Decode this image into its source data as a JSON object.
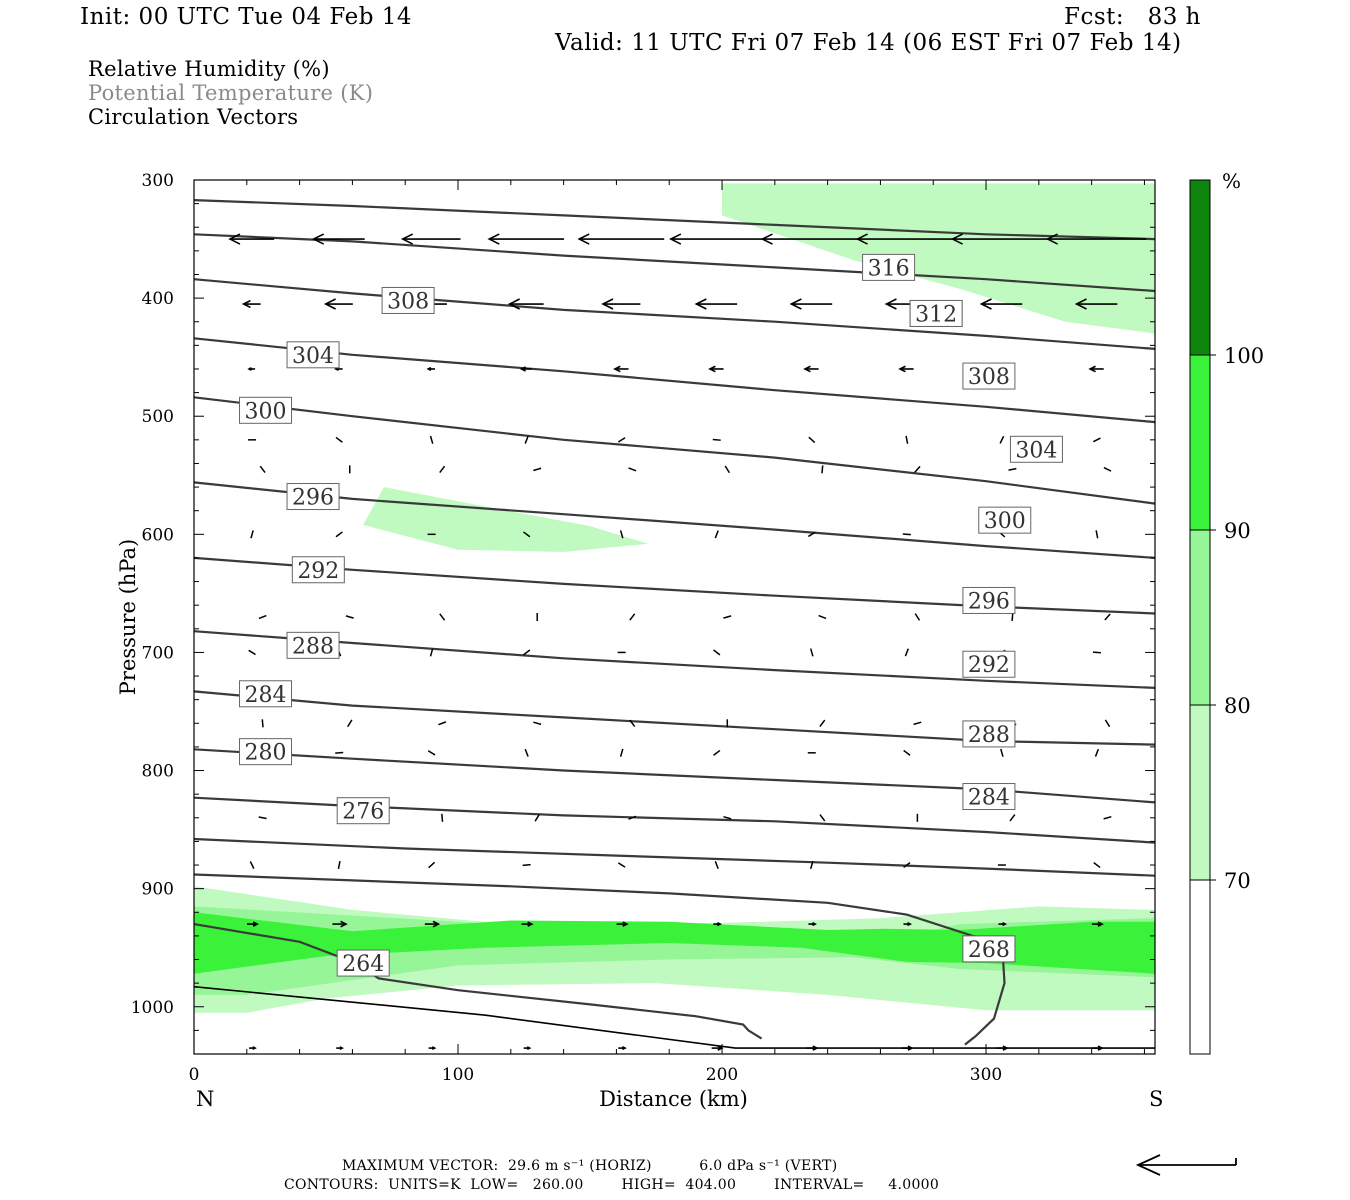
{
  "header": {
    "init": "Init: 00 UTC Tue 04 Feb 14",
    "fcst": "Fcst:   83 h",
    "valid": "Valid: 11 UTC Fri 07 Feb 14 (06 EST Fri 07 Feb 14)"
  },
  "fields": [
    "Relative Humidity (%)",
    "Potential Temperature (K)",
    "Circulation Vectors"
  ],
  "colors": {
    "rh70": "#c1fac1",
    "rh80": "#96f596",
    "rh90": "#39f239",
    "rh100": "#0e860e",
    "contour": "#3a3a3a",
    "field_gray": "#8a8a8a"
  },
  "chart_data": {
    "type": "cross-section",
    "xlabel": "Distance (km)",
    "ylabel": "Pressure (hPa)",
    "xlim": [
      0,
      364
    ],
    "ylim": [
      300,
      1040
    ],
    "xticks": [
      0,
      100,
      200,
      300
    ],
    "yticks": [
      300,
      400,
      500,
      600,
      700,
      800,
      900,
      1000
    ],
    "endpoint_left": "N",
    "endpoint_right": "S",
    "theta_contours": [
      {
        "label": "264",
        "points": [
          [
            0,
            930
          ],
          [
            40,
            945
          ],
          [
            60,
            962
          ],
          [
            70,
            976
          ],
          [
            100,
            986
          ],
          [
            150,
            998
          ],
          [
            190,
            1008
          ],
          [
            208,
            1015
          ],
          [
            210,
            1020
          ],
          [
            215,
            1027
          ]
        ],
        "label_at": [
          55,
          963
        ]
      },
      {
        "label": "268",
        "points": [
          [
            0,
            888
          ],
          [
            60,
            893
          ],
          [
            120,
            898
          ],
          [
            180,
            904
          ],
          [
            240,
            912
          ],
          [
            270,
            922
          ],
          [
            295,
            940
          ],
          [
            306,
            944
          ],
          [
            307,
            980
          ],
          [
            303,
            1010
          ],
          [
            296,
            1025
          ],
          [
            292,
            1032
          ]
        ],
        "label_at": [
          292,
          951
        ]
      },
      {
        "label": "",
        "points": [
          [
            0,
            858
          ],
          [
            80,
            866
          ],
          [
            160,
            872
          ],
          [
            240,
            878
          ],
          [
            300,
            883
          ],
          [
            364,
            889
          ]
        ],
        "label_at": null
      },
      {
        "label": "276",
        "points": [
          [
            0,
            823
          ],
          [
            60,
            830
          ],
          [
            140,
            838
          ],
          [
            220,
            843
          ],
          [
            300,
            852
          ],
          [
            364,
            861
          ]
        ],
        "label_at": [
          55,
          834
        ]
      },
      {
        "label": "280",
        "points": [
          [
            0,
            782
          ],
          [
            60,
            790
          ],
          [
            140,
            800
          ],
          [
            220,
            808
          ],
          [
            300,
            816
          ],
          [
            364,
            827
          ]
        ],
        "label_at": [
          18,
          784
        ]
      },
      {
        "label": "284",
        "points": [
          [
            0,
            733
          ],
          [
            60,
            745
          ],
          [
            140,
            755
          ],
          [
            220,
            765
          ],
          [
            300,
            775
          ],
          [
            364,
            778
          ]
        ],
        "label_at": [
          18,
          735
        ]
      },
      {
        "label": "288",
        "points": [
          [
            0,
            682
          ],
          [
            60,
            692
          ],
          [
            140,
            705
          ],
          [
            220,
            715
          ],
          [
            300,
            724
          ],
          [
            364,
            730
          ]
        ],
        "label_at": [
          36,
          694
        ]
      },
      {
        "label": "292",
        "points": [
          [
            0,
            620
          ],
          [
            60,
            630
          ],
          [
            140,
            642
          ],
          [
            220,
            652
          ],
          [
            300,
            661
          ],
          [
            364,
            667
          ]
        ],
        "label_at": [
          38,
          630
        ]
      },
      {
        "label": "296",
        "points": [
          [
            0,
            556
          ],
          [
            60,
            570
          ],
          [
            140,
            583
          ],
          [
            220,
            596
          ],
          [
            300,
            610
          ],
          [
            364,
            620
          ]
        ],
        "label_at": [
          36,
          568
        ]
      },
      {
        "label": "300",
        "points": [
          [
            0,
            484
          ],
          [
            60,
            500
          ],
          [
            140,
            520
          ],
          [
            220,
            535
          ],
          [
            300,
            555
          ],
          [
            364,
            574
          ]
        ],
        "label_at": [
          18,
          495
        ]
      },
      {
        "label": "304",
        "points": [
          [
            0,
            434
          ],
          [
            60,
            448
          ],
          [
            140,
            462
          ],
          [
            220,
            478
          ],
          [
            300,
            492
          ],
          [
            364,
            505
          ]
        ],
        "label_at": [
          36,
          448
        ]
      },
      {
        "label": "308",
        "points": [
          [
            0,
            384
          ],
          [
            60,
            396
          ],
          [
            140,
            410
          ],
          [
            220,
            420
          ],
          [
            300,
            432
          ],
          [
            364,
            443
          ]
        ],
        "label_at": [
          72,
          402
        ]
      },
      {
        "label": "312",
        "points": [
          [
            0,
            346
          ],
          [
            60,
            352
          ],
          [
            140,
            364
          ],
          [
            220,
            374
          ],
          [
            300,
            384
          ],
          [
            364,
            394
          ]
        ],
        "label_at": [
          272,
          413
        ]
      },
      {
        "label": "316",
        "points": [
          [
            0,
            317
          ],
          [
            60,
            322
          ],
          [
            140,
            330
          ],
          [
            220,
            338
          ],
          [
            300,
            346
          ],
          [
            364,
            350
          ]
        ],
        "label_at": [
          254,
          374
        ]
      }
    ],
    "theta_extra_labels": [
      {
        "label": "312",
        "at": [
          272,
          413
        ]
      },
      {
        "label": "308",
        "at": [
          292,
          466
        ]
      },
      {
        "label": "304",
        "at": [
          310,
          528
        ]
      },
      {
        "label": "300",
        "at": [
          298,
          588
        ]
      },
      {
        "label": "296",
        "at": [
          292,
          656
        ]
      },
      {
        "label": "292",
        "at": [
          292,
          710
        ]
      },
      {
        "label": "288",
        "at": [
          292,
          769
        ]
      },
      {
        "label": "284",
        "at": [
          292,
          822
        ]
      },
      {
        "label": "268",
        "at": [
          292,
          951
        ]
      }
    ],
    "rh_shaded": [
      {
        "level": "70-80",
        "polygon": [
          [
            200,
            303
          ],
          [
            364,
            303
          ],
          [
            364,
            430
          ],
          [
            330,
            420
          ],
          [
            290,
            392
          ],
          [
            250,
            368
          ],
          [
            200,
            330
          ]
        ]
      },
      {
        "level": "70-80",
        "polygon": [
          [
            64,
            592
          ],
          [
            72,
            560
          ],
          [
            100,
            572
          ],
          [
            150,
            593
          ],
          [
            172,
            608
          ],
          [
            140,
            615
          ],
          [
            100,
            613
          ]
        ]
      },
      {
        "level": "70-80",
        "polygon": [
          [
            0,
            898
          ],
          [
            60,
            918
          ],
          [
            120,
            930
          ],
          [
            200,
            929
          ],
          [
            260,
            925
          ],
          [
            320,
            915
          ],
          [
            364,
            918
          ],
          [
            364,
            1003
          ],
          [
            300,
            1003
          ],
          [
            240,
            990
          ],
          [
            175,
            980
          ],
          [
            100,
            982
          ],
          [
            50,
            993
          ],
          [
            20,
            1005
          ],
          [
            0,
            1005
          ]
        ]
      },
      {
        "level": "80-90",
        "polygon": [
          [
            0,
            915
          ],
          [
            100,
            928
          ],
          [
            200,
            940
          ],
          [
            260,
            945
          ],
          [
            290,
            930
          ],
          [
            364,
            925
          ],
          [
            364,
            975
          ],
          [
            290,
            968
          ],
          [
            250,
            958
          ],
          [
            180,
            960
          ],
          [
            100,
            965
          ],
          [
            20,
            990
          ],
          [
            0,
            990
          ]
        ]
      },
      {
        "level": "90-100",
        "polygon": [
          [
            0,
            920
          ],
          [
            60,
            936
          ],
          [
            120,
            927
          ],
          [
            180,
            928
          ],
          [
            240,
            935
          ],
          [
            262,
            934
          ],
          [
            290,
            935
          ],
          [
            340,
            928
          ],
          [
            364,
            928
          ],
          [
            364,
            972
          ],
          [
            300,
            963
          ],
          [
            270,
            962
          ],
          [
            230,
            950
          ],
          [
            180,
            946
          ],
          [
            110,
            950
          ],
          [
            50,
            957
          ],
          [
            0,
            972
          ]
        ]
      }
    ],
    "circulation_vectors_u_ms": [
      {
        "p": 350,
        "u": [
          -13,
          -15,
          -17,
          -22,
          -25,
          -27,
          -29,
          -29,
          -29,
          -29
        ]
      },
      {
        "p": 405,
        "u": [
          -5,
          -8,
          -9,
          -10,
          -11,
          -12,
          -12,
          -12,
          -12,
          -12
        ]
      },
      {
        "p": 460,
        "u": [
          -1,
          -2,
          -2,
          -3,
          -4,
          -4,
          -4,
          -4,
          -4,
          -4
        ]
      },
      {
        "p": 930,
        "u": [
          3,
          4,
          4,
          3,
          3,
          2,
          2,
          2,
          2,
          3
        ]
      },
      {
        "p": 1035,
        "u": [
          0,
          0,
          0,
          1,
          2,
          3,
          3,
          3,
          3,
          3
        ]
      }
    ],
    "colorbar": {
      "unit": "%",
      "levels": [
        "70",
        "80",
        "90",
        "100"
      ]
    }
  },
  "footer": {
    "max_vector": "MAXIMUM VECTOR:  29.6 m s⁻¹ (HORIZ)          6.0 dPa s⁻¹ (VERT)",
    "contours": "CONTOURS:  UNITS=K  LOW=   260.00        HIGH=  404.00        INTERVAL=     4.0000"
  }
}
